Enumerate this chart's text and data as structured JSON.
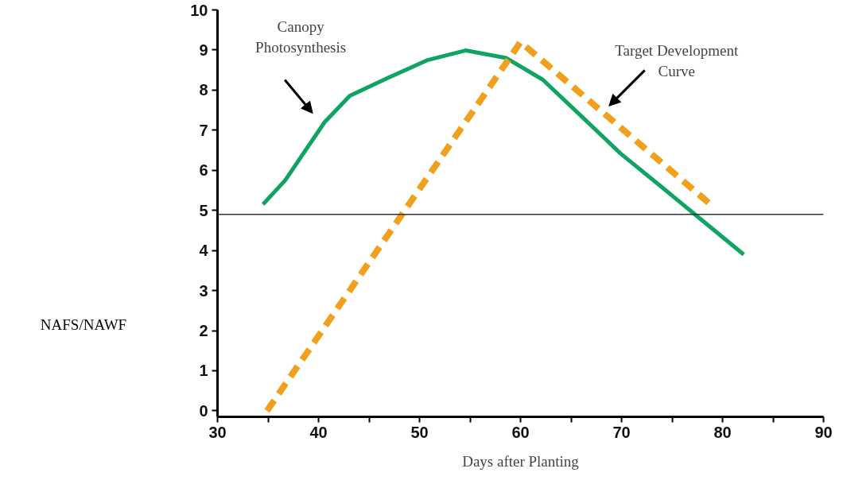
{
  "chart_data": {
    "type": "line",
    "xlabel": "Days after Planting",
    "ylabel": "NAFS/NAWF",
    "xlim": [
      30,
      90
    ],
    "xticks": [
      30,
      {
        "value": 35,
        "label": null
      },
      40,
      {
        "value": 45,
        "label": null
      },
      50,
      {
        "value": 55,
        "label": null
      },
      60,
      {
        "value": 65,
        "label": null
      },
      70,
      {
        "value": 75,
        "label": null
      },
      80,
      {
        "value": 85,
        "label": null
      },
      90
    ],
    "ylim": [
      -0.15,
      10
    ],
    "yticks": [
      0,
      1,
      2,
      3,
      4,
      5,
      6,
      7,
      8,
      9,
      10
    ],
    "grid": false,
    "marker": "none",
    "series": [
      {
        "color": "#0fa463",
        "line_style": "solid",
        "x": [
          34.5,
          36.7,
          40.6,
          43.1,
          47,
          50.8,
          54.6,
          58.6,
          62.2,
          66.1,
          69.9,
          73.8,
          77.6,
          82.1
        ],
        "values": [
          5.15,
          5.75,
          7.2,
          7.86,
          8.32,
          8.75,
          8.99,
          8.8,
          8.26,
          7.33,
          6.42,
          5.62,
          4.83,
          3.9
        ]
      },
      {
        "color": "#f0a01c",
        "line_style": "dashed",
        "x": [
          34.9,
          60,
          78.8
        ],
        "values": [
          0,
          9.2,
          5.15
        ]
      }
    ],
    "ref_lines": [
      {
        "axis": "y",
        "value": 4.9,
        "color": "#333333",
        "line_style": "solid"
      }
    ],
    "annotations": [
      "Canopy Photosynthesis",
      "Target Development Curve"
    ]
  }
}
